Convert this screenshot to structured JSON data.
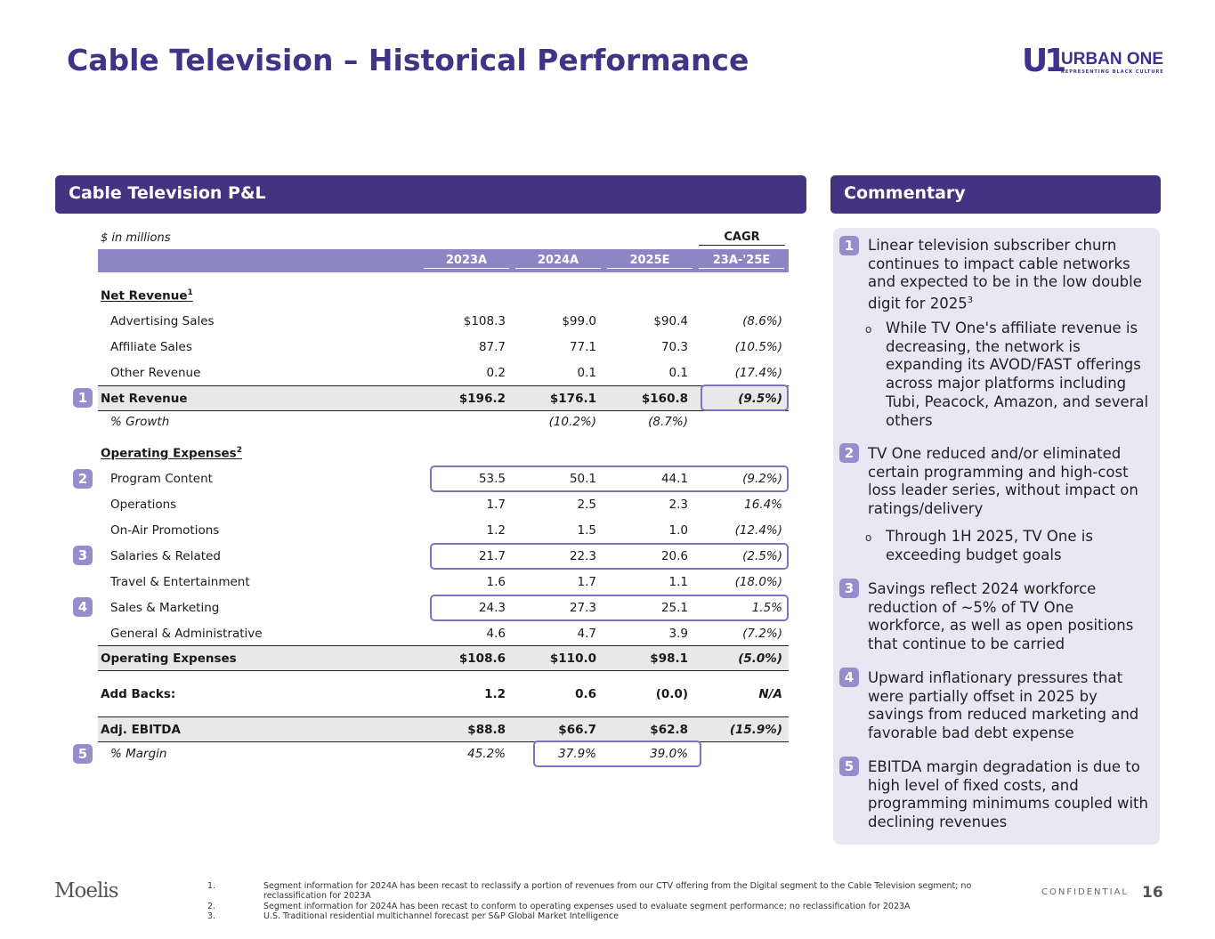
{
  "title": "Cable Television – Historical Performance",
  "logo": {
    "mark": "U1",
    "name": "URBAN ONE",
    "tagline": "REPRESENTING BLACK CULTURE"
  },
  "pl_header": "Cable Television P&L",
  "commentary_header": "Commentary",
  "units": "$ in millions",
  "cagr_label": "CAGR",
  "columns": [
    "2023A",
    "2024A",
    "2025E",
    "23A-'25E"
  ],
  "rows": {
    "net_rev_heading": {
      "label": "Net Revenue",
      "sup": "1"
    },
    "adv": {
      "label": "Advertising Sales",
      "values": [
        "$108.3",
        "$99.0",
        "$90.4",
        "(8.6%)"
      ]
    },
    "aff": {
      "label": "Affiliate Sales",
      "values": [
        "87.7",
        "77.1",
        "70.3",
        "(10.5%)"
      ]
    },
    "oth": {
      "label": "Other Revenue",
      "values": [
        "0.2",
        "0.1",
        "0.1",
        "(17.4%)"
      ]
    },
    "netrev": {
      "label": "Net Revenue",
      "values": [
        "$196.2",
        "$176.1",
        "$160.8",
        "(9.5%)"
      ]
    },
    "growth": {
      "label": "% Growth",
      "values": [
        "",
        "(10.2%)",
        "(8.7%)",
        ""
      ]
    },
    "opex_heading": {
      "label": "Operating Expenses",
      "sup": "2"
    },
    "prog": {
      "label": "Program Content",
      "values": [
        "53.5",
        "50.1",
        "44.1",
        "(9.2%)"
      ]
    },
    "ops": {
      "label": "Operations",
      "values": [
        "1.7",
        "2.5",
        "2.3",
        "16.4%"
      ]
    },
    "promo": {
      "label": "On-Air Promotions",
      "values": [
        "1.2",
        "1.5",
        "1.0",
        "(12.4%)"
      ]
    },
    "sal": {
      "label": "Salaries & Related",
      "values": [
        "21.7",
        "22.3",
        "20.6",
        "(2.5%)"
      ]
    },
    "travel": {
      "label": "Travel & Entertainment",
      "values": [
        "1.6",
        "1.7",
        "1.1",
        "(18.0%)"
      ]
    },
    "sm": {
      "label": "Sales & Marketing",
      "values": [
        "24.3",
        "27.3",
        "25.1",
        "1.5%"
      ]
    },
    "ga": {
      "label": "General & Administrative",
      "values": [
        "4.6",
        "4.7",
        "3.9",
        "(7.2%)"
      ]
    },
    "opex": {
      "label": "Operating Expenses",
      "values": [
        "$108.6",
        "$110.0",
        "$98.1",
        "(5.0%)"
      ]
    },
    "addbacks": {
      "label": "Add Backs:",
      "values": [
        "1.2",
        "0.6",
        "(0.0)",
        "N/A"
      ]
    },
    "ebitda": {
      "label": "Adj. EBITDA",
      "values": [
        "$88.8",
        "$66.7",
        "$62.8",
        "(15.9%)"
      ]
    },
    "margin": {
      "label": "% Margin",
      "values": [
        "45.2%",
        "37.9%",
        "39.0%",
        ""
      ]
    }
  },
  "badges": [
    "1",
    "2",
    "3",
    "4",
    "5"
  ],
  "commentary": [
    {
      "num": "1",
      "text": "Linear television subscriber churn continues to impact cable networks and expected to be in the low double digit for 2025",
      "sup": "3",
      "sub": "While TV One's affiliate revenue is decreasing, the network is expanding its AVOD/FAST offerings across major platforms including Tubi, Peacock, Amazon, and several others"
    },
    {
      "num": "2",
      "text": "TV One reduced and/or eliminated certain programming and high-cost loss leader series, without impact on ratings/delivery",
      "sub": "Through 1H 2025, TV One is exceeding budget goals"
    },
    {
      "num": "3",
      "text": "Savings reflect 2024 workforce reduction of ~5% of TV One workforce, as well as open positions that continue to be carried"
    },
    {
      "num": "4",
      "text": "Upward inflationary pressures that were partially offset in 2025 by savings from reduced marketing and favorable bad debt expense"
    },
    {
      "num": "5",
      "text": "EBITDA margin degradation is due to high level of fixed costs, and programming minimums coupled with declining revenues"
    }
  ],
  "bullet": "o",
  "footer": {
    "brand": "Moelis",
    "confidential": "CONFIDENTIAL",
    "page": "16",
    "footnotes": [
      {
        "n": "1.",
        "text": "Segment information for 2024A has been recast to reclassify a portion of revenues from our CTV offering from the Digital segment to the Cable Television segment; no reclassification for 2023A"
      },
      {
        "n": "2.",
        "text": "Segment information for 2024A has been recast to conform to operating expenses used to evaluate segment performance; no reclassification for 2023A"
      },
      {
        "n": "3.",
        "text": "U.S. Traditional residential multichannel forecast per S&P Global Market Intelligence"
      }
    ]
  },
  "colors": {
    "brand_purple": "#433380",
    "title": "#3f3486",
    "table_header": "#8e86c4",
    "badge": "#958dcc",
    "panel": "#e9e7f3"
  }
}
